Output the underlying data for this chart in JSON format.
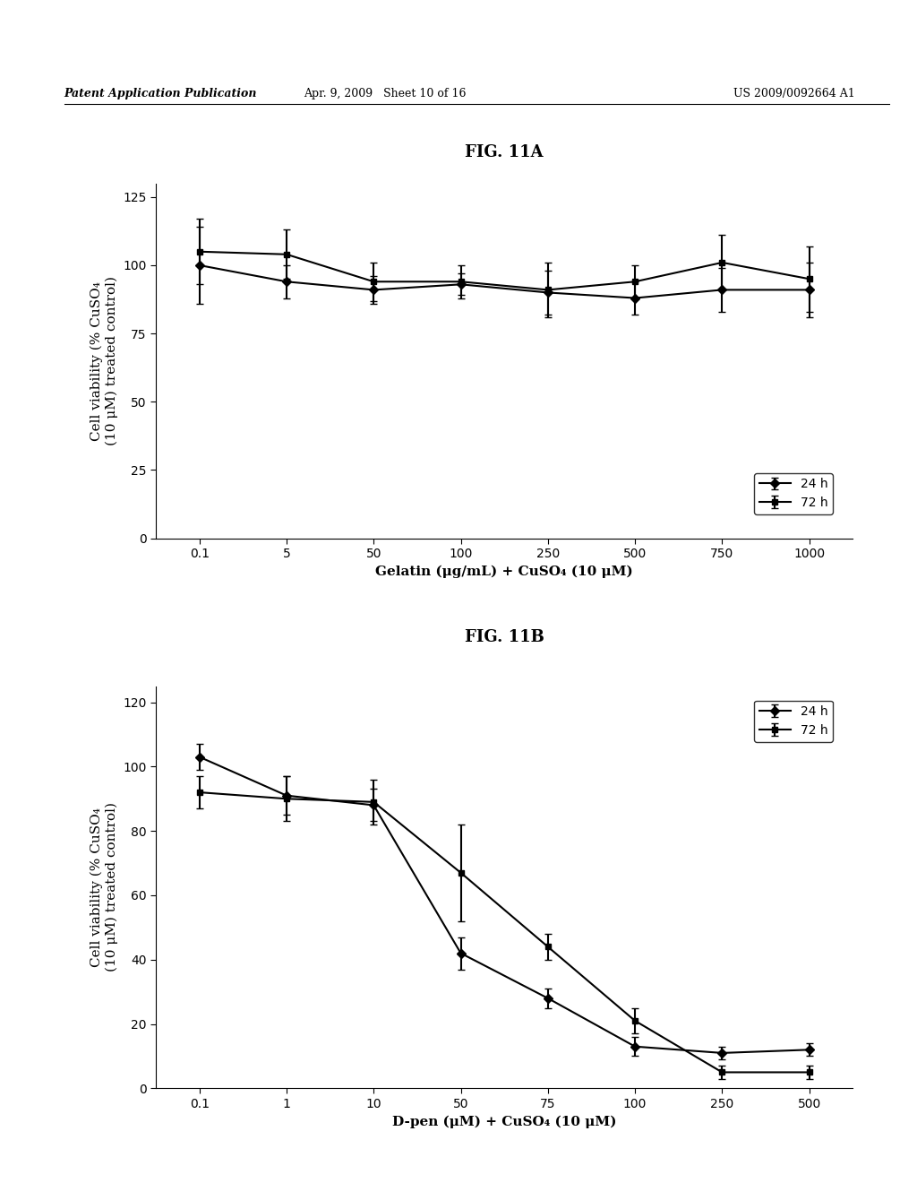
{
  "header_left": "Patent Application Publication",
  "header_mid": "Apr. 9, 2009   Sheet 10 of 16",
  "header_right": "US 2009/0092664 A1",
  "fig11a": {
    "title": "FIG. 11A",
    "xlabel": "Gelatin (μg/mL) + CuSO₄ (10 μM)",
    "ylabel": "Cell viability (% CuSO₄\n(10 μM) treated control)",
    "xtick_labels": [
      "0.1",
      "5",
      "50",
      "100",
      "250",
      "500",
      "750",
      "1000"
    ],
    "yticks": [
      0,
      25,
      50,
      75,
      100,
      125
    ],
    "ylim": [
      0,
      130
    ],
    "series_24h": {
      "label": "24 h",
      "y": [
        100,
        94,
        91,
        93,
        90,
        88,
        91,
        91
      ],
      "yerr": [
        14,
        6,
        5,
        4,
        8,
        6,
        8,
        10
      ]
    },
    "series_72h": {
      "label": "72 h",
      "y": [
        105,
        104,
        94,
        94,
        91,
        94,
        101,
        95
      ],
      "yerr": [
        12,
        9,
        7,
        6,
        10,
        6,
        10,
        12
      ]
    }
  },
  "fig11b": {
    "title": "FIG. 11B",
    "xlabel": "D-pen (μM) + CuSO₄ (10 μM)",
    "ylabel": "Cell viability (% CuSO₄\n(10 μM) treated control)",
    "xtick_labels": [
      "0.1",
      "1",
      "10",
      "50",
      "75",
      "100",
      "250",
      "500"
    ],
    "yticks": [
      0,
      20,
      40,
      60,
      80,
      100,
      120
    ],
    "ylim": [
      0,
      125
    ],
    "series_24h": {
      "label": "24 h",
      "y": [
        103,
        91,
        88,
        42,
        28,
        13,
        11,
        12
      ],
      "yerr": [
        4,
        6,
        5,
        5,
        3,
        3,
        2,
        2
      ]
    },
    "series_72h": {
      "label": "72 h",
      "y": [
        92,
        90,
        89,
        67,
        44,
        21,
        5,
        5
      ],
      "yerr": [
        5,
        7,
        7,
        15,
        4,
        4,
        2,
        2
      ]
    }
  },
  "line_color": "#000000",
  "marker_diamond": "D",
  "marker_square": "s",
  "marker_size": 5,
  "linewidth": 1.5,
  "capsize": 3,
  "legend_fontsize": 10,
  "tick_fontsize": 10,
  "label_fontsize": 11,
  "title_fontsize": 13,
  "background_color": "#ffffff"
}
